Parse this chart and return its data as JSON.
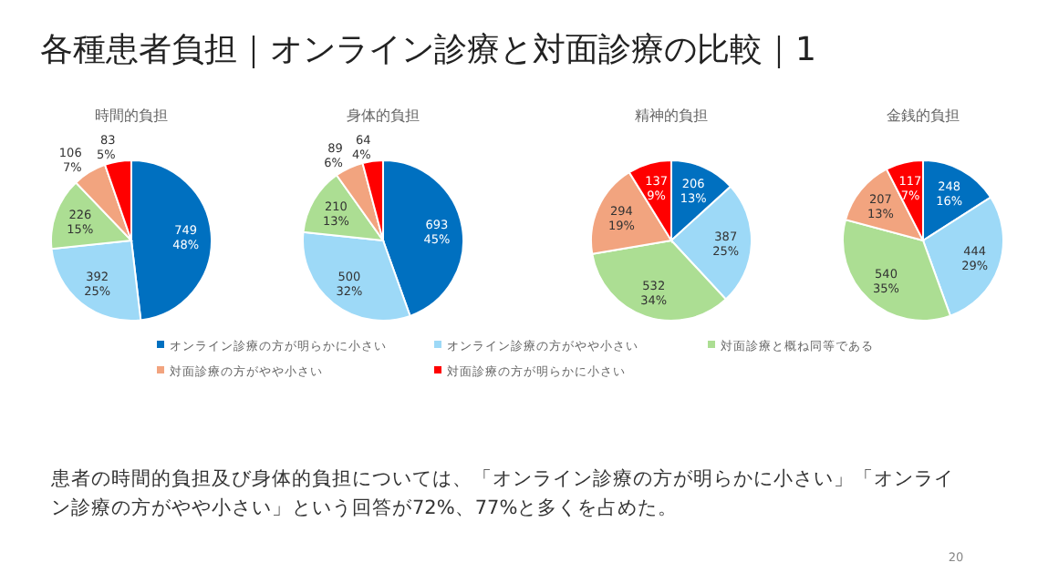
{
  "chart_data": [
    {
      "type": "pie",
      "title": "時間的負担",
      "categories": [
        "オンライン診療の方が明らかに小さい",
        "オンライン診療の方がやや小さい",
        "対面診療と概ね同等である",
        "対面診療の方がやや小さい",
        "対面診療の方が明らかに小さい"
      ],
      "values": [
        749,
        392,
        226,
        106,
        83
      ],
      "value_labels": [
        "749\n48%",
        "392\n25%",
        "226\n15%",
        "106\n7%",
        "83\n5%"
      ],
      "colors": [
        "#0070c0",
        "#9dd9f7",
        "#acde93",
        "#f2a47f",
        "#ff0000"
      ],
      "legend": "bottom"
    },
    {
      "type": "pie",
      "title": "身体的負担",
      "categories": [
        null,
        null,
        null,
        null,
        null
      ],
      "values": [
        693,
        500,
        210,
        89,
        64
      ],
      "value_labels": [
        "693\n45%",
        "500\n32%",
        "210\n13%",
        "89\n6%",
        "64\n4%"
      ],
      "colors": [
        "#0070c0",
        "#9dd9f7",
        "#acde93",
        "#f2a47f",
        "#ff0000"
      ]
    },
    {
      "type": "pie",
      "title": "精神的負担",
      "categories": [
        null,
        null,
        null,
        null,
        null
      ],
      "values": [
        206,
        387,
        532,
        294,
        137
      ],
      "value_labels": [
        "206\n13%",
        "387\n25%",
        "532\n34%",
        "294\n19%",
        "137\n9%"
      ],
      "colors": [
        "#0070c0",
        "#9dd9f7",
        "#acde93",
        "#f2a47f",
        "#ff0000"
      ]
    },
    {
      "type": "pie",
      "title": "金銭的負担",
      "categories": [
        null,
        null,
        null,
        null,
        null
      ],
      "values": [
        248,
        444,
        540,
        207,
        117
      ],
      "value_labels": [
        "248\n16%",
        "444\n29%",
        "540\n35%",
        "207\n13%",
        "117\n7%"
      ],
      "colors": [
        "#0070c0",
        "#9dd9f7",
        "#acde93",
        "#f2a47f",
        "#ff0000"
      ]
    },
    {
      "type": "other",
      "title": "各種患者負担｜オンライン診療と対面診療の比較｜1",
      "annotations": [
        "患者の時間的負担及び身体的負担については、「オンライン診療の方が明らかに小さい」「オンライン診療の方がやや小さい」という回答が72%、77%と多くを占めた。",
        "20"
      ]
    }
  ]
}
